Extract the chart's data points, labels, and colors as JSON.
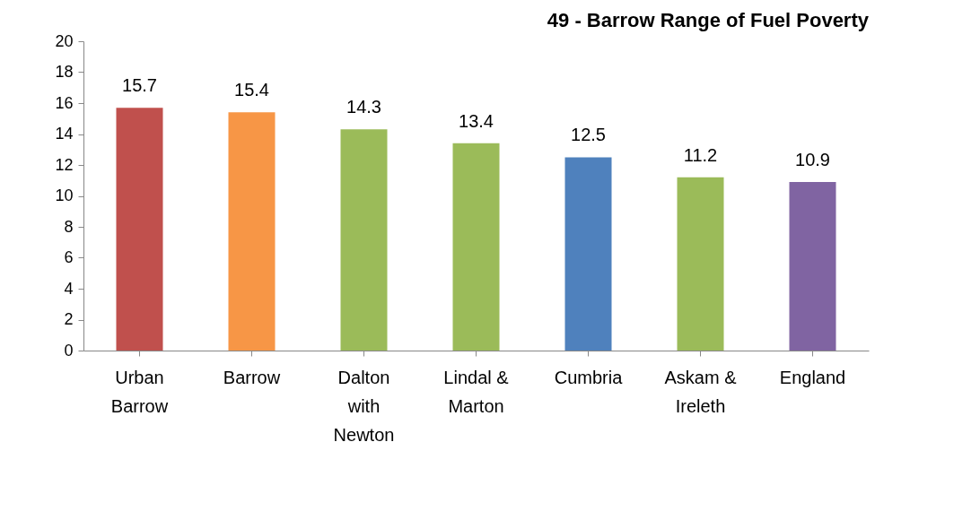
{
  "chart_data": {
    "type": "bar",
    "title": "49 - Barrow Range of Fuel Poverty",
    "categories": [
      "Urban Barrow",
      "Barrow",
      "Dalton with Newton",
      "Lindal & Marton",
      "Cumbria",
      "Askam & Ireleth",
      "England"
    ],
    "values": [
      15.7,
      15.4,
      14.3,
      13.4,
      12.5,
      11.2,
      10.9
    ],
    "colors": [
      "#c0504d",
      "#f79646",
      "#9bbb59",
      "#9bbb59",
      "#4f81bd",
      "#9bbb59",
      "#8064a2"
    ],
    "ylim": [
      0,
      20
    ],
    "yticks": [
      0,
      2,
      4,
      6,
      8,
      10,
      12,
      14,
      16,
      18,
      20
    ],
    "grid": false,
    "legend": false,
    "data_labels": true
  }
}
